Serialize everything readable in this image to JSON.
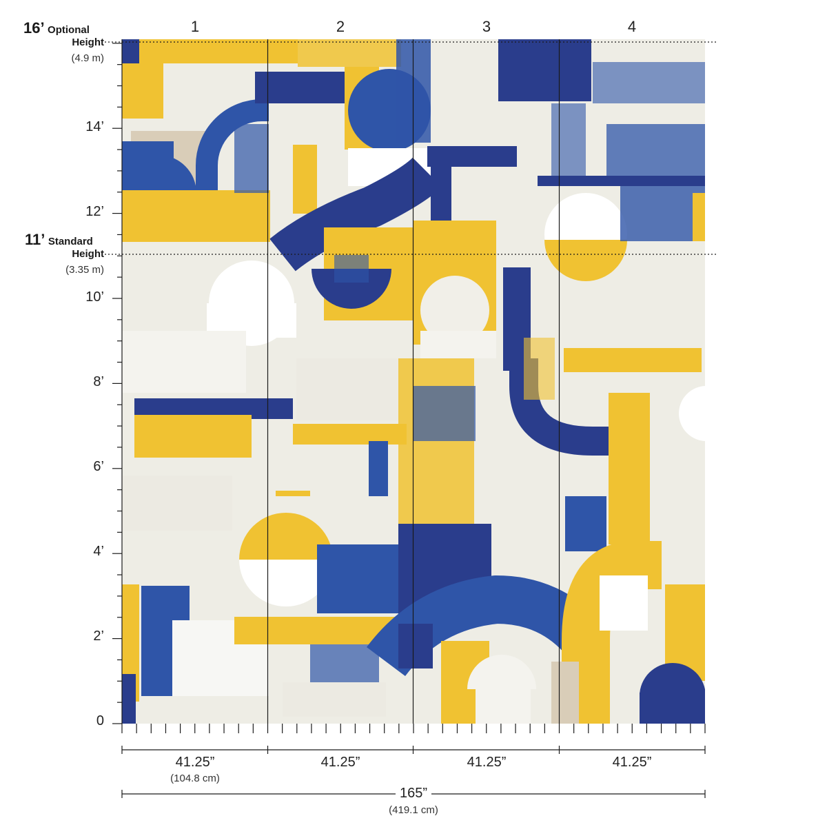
{
  "panels": [
    "1",
    "2",
    "3",
    "4"
  ],
  "heights": {
    "optional": {
      "value": "16’",
      "label": "Optional",
      "label2": "Height",
      "metric": "(4.9 m)"
    },
    "standard": {
      "value": "11’",
      "label": "Standard",
      "label2": "Height",
      "metric": "(3.35 m)"
    }
  },
  "height_ticks": [
    "14’",
    "12’",
    "10’",
    "8’",
    "6’",
    "4’",
    "2’",
    "0"
  ],
  "panel_widths": [
    {
      "value": "41.25”",
      "metric": "(104.8 cm)"
    },
    {
      "value": "41.25”",
      "metric": ""
    },
    {
      "value": "41.25”",
      "metric": ""
    },
    {
      "value": "41.25”",
      "metric": ""
    }
  ],
  "total_width": {
    "value": "165”",
    "metric": "(419.1 cm)"
  },
  "colors": {
    "blue": "#2f55a8",
    "navy": "#2a3d8c",
    "yellow": "#f0c232",
    "cream": "#e9e6dc",
    "light": "#f4f3ee",
    "beige": "#d9cdb8",
    "ink": "#1a1a1a"
  }
}
